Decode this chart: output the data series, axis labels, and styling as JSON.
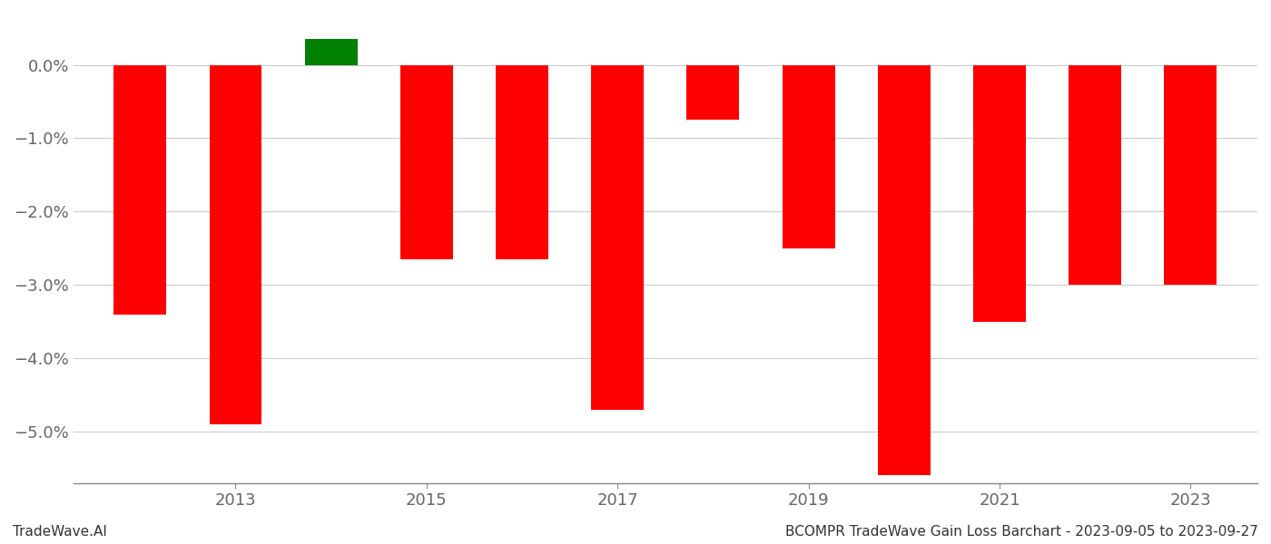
{
  "years": [
    2012,
    2013,
    2014,
    2015,
    2016,
    2017,
    2018,
    2019,
    2020,
    2021,
    2022,
    2023
  ],
  "values": [
    -0.034,
    -0.049,
    0.0035,
    -0.0265,
    -0.0265,
    -0.047,
    -0.0075,
    -0.025,
    -0.056,
    -0.035,
    -0.03,
    -0.03
  ],
  "colors": [
    "#ff0000",
    "#ff0000",
    "#008000",
    "#ff0000",
    "#ff0000",
    "#ff0000",
    "#ff0000",
    "#ff0000",
    "#ff0000",
    "#ff0000",
    "#ff0000",
    "#ff0000"
  ],
  "bar_width": 0.55,
  "ylim_min": -0.057,
  "ylim_max": 0.007,
  "yticks": [
    0.0,
    -0.01,
    -0.02,
    -0.03,
    -0.04,
    -0.05
  ],
  "xlabel": "",
  "ylabel": "",
  "title": "",
  "footer_left": "TradeWave.AI",
  "footer_right": "BCOMPR TradeWave Gain Loss Barchart - 2023-09-05 to 2023-09-27",
  "grid_color": "#cccccc",
  "axis_color": "#888888",
  "tick_label_color": "#666666",
  "background_color": "#ffffff",
  "x_tick_years": [
    2013,
    2015,
    2017,
    2019,
    2021,
    2023
  ]
}
